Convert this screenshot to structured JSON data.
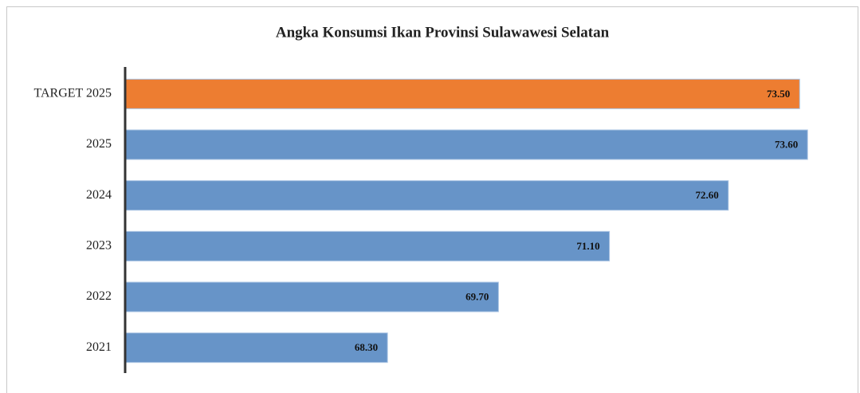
{
  "chart_data": {
    "type": "hbar",
    "title": "Angka Konsumsi Ikan Provinsi Sulawawesi Selatan",
    "categories": [
      "TARGET 2025",
      "2025",
      "2024",
      "2023",
      "2022",
      "2021"
    ],
    "values": [
      73.5,
      73.6,
      72.6,
      71.1,
      69.7,
      68.3
    ],
    "value_labels": [
      "73.50",
      "73.60",
      "72.60",
      "71.10",
      "69.70",
      "68.30"
    ],
    "colors": [
      "#ed7d31",
      "#6794c8",
      "#6794c8",
      "#6794c8",
      "#6794c8",
      "#6794c8"
    ],
    "xlim": [
      65,
      74
    ]
  }
}
